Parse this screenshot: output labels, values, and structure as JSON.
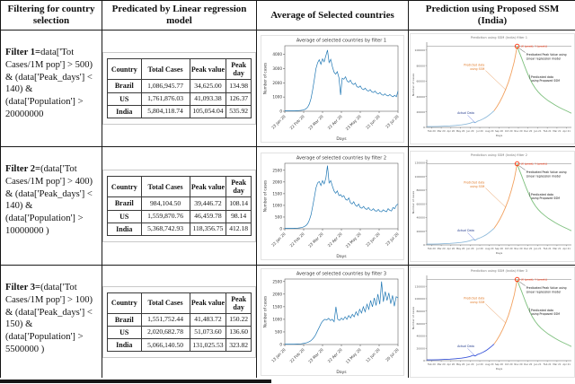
{
  "header": {
    "columns": [
      "Filtering for country selection",
      "Predicated by Linear regression model",
      "Average of Selected countries",
      "Prediction using Proposed SSM (India)"
    ]
  },
  "rows": [
    {
      "filter_bold": "Filter 1=",
      "filter_rest": "data['Tot Cases/1M pop'] > 500) & (data['Peak_days'] < 140) & (data['Population'] > 20000000",
      "table": {
        "headers": [
          "Country",
          "Total Cases",
          "Peak value",
          "Peak day"
        ],
        "rows": [
          [
            "Brazil",
            "1,086,945.77",
            "34,625.00",
            "134.98"
          ],
          [
            "US",
            "1,761,876.03",
            "41,093.38",
            "126.37"
          ],
          [
            "India",
            "5,804,118.74",
            "105,054.04",
            "535.92"
          ]
        ]
      }
    },
    {
      "filter_bold": "Filter 2=",
      "filter_rest": "(data['Tot Cases/1M pop'] > 400) & (data['Peak_days'] < 140) & (data['Population'] > 10000000 )",
      "table": {
        "headers": [
          "Country",
          "Total Cases",
          "Peak value",
          "Peak day"
        ],
        "rows": [
          [
            "Brazil",
            "984,104.50",
            "39,446.72",
            "108.14"
          ],
          [
            "US",
            "1,559,870.76",
            "46,459.78",
            "98.14"
          ],
          [
            "India",
            "5,368,742.93",
            "118,356.75",
            "412.18"
          ]
        ]
      }
    },
    {
      "filter_bold": "Filter 3=",
      "filter_rest": "(data['Tot Cases/1M pop'] > 100) & (data['Peak_days'] < 150) & (data['Population'] > 5500000 )",
      "table": {
        "headers": [
          "Country",
          "Total Cases",
          "Peak value",
          "Peak day"
        ],
        "rows": [
          [
            "Brazil",
            "1,551,752.44",
            "41,483.72",
            "150.22"
          ],
          [
            "US",
            "2,020,682.78",
            "51,073.60",
            "136.60"
          ],
          [
            "India",
            "5,066,140.50",
            "131,025.53",
            "323.82"
          ]
        ]
      }
    }
  ],
  "colors": {
    "avg_line": "#1f77b4",
    "actual_segment": [
      "#8fbbdb",
      "#8fbbdb",
      "#3a55d9"
    ],
    "ssm_segment": "#f2a15f",
    "proposed_segment": "#7cbf7c",
    "peak_marker": "#ff2a00",
    "peak_line": "#9a9a9a",
    "axis": "#444444"
  },
  "pred_common": {
    "red_label": "(X (peak), Y (peak))",
    "lin_label_1": "Predicated Peak Value using",
    "lin_label_2": "Linear regression model",
    "fit_label_1": "Predicted data",
    "fit_label_2": "using SSM",
    "actual_label": "Actual Data",
    "prop_label_1": "Predicated data",
    "prop_label_2": "using Proposed SSM",
    "ylabel": "Number of cases",
    "xlabel": "Days"
  },
  "pred_shape": {
    "actual": [
      [
        0,
        0.01
      ],
      [
        0.04,
        0.01
      ],
      [
        0.08,
        0.012
      ],
      [
        0.12,
        0.015
      ],
      [
        0.16,
        0.019
      ],
      [
        0.2,
        0.024
      ],
      [
        0.24,
        0.031
      ],
      [
        0.27,
        0.04
      ],
      [
        0.3,
        0.052
      ],
      [
        0.32,
        0.066
      ],
      [
        0.335,
        0.058
      ],
      [
        0.35,
        0.075
      ],
      [
        0.37,
        0.088
      ],
      [
        0.39,
        0.105
      ],
      [
        0.41,
        0.125
      ],
      [
        0.43,
        0.15
      ],
      [
        0.45,
        0.18
      ],
      [
        0.465,
        0.205
      ]
    ],
    "ssm": [
      [
        0.465,
        0.205
      ],
      [
        0.485,
        0.255
      ],
      [
        0.505,
        0.315
      ],
      [
        0.525,
        0.385
      ],
      [
        0.545,
        0.465
      ],
      [
        0.565,
        0.56
      ],
      [
        0.585,
        0.675
      ],
      [
        0.605,
        0.81
      ],
      [
        0.617,
        0.92
      ],
      [
        0.625,
        1.0
      ]
    ],
    "proposed": [
      [
        0.625,
        1.0
      ],
      [
        0.64,
        0.925
      ],
      [
        0.655,
        0.855
      ],
      [
        0.67,
        0.785
      ],
      [
        0.685,
        0.715
      ],
      [
        0.7,
        0.65
      ],
      [
        0.715,
        0.592
      ],
      [
        0.73,
        0.54
      ],
      [
        0.75,
        0.482
      ],
      [
        0.77,
        0.438
      ],
      [
        0.79,
        0.4
      ],
      [
        0.815,
        0.362
      ],
      [
        0.84,
        0.328
      ],
      [
        0.865,
        0.3
      ],
      [
        0.89,
        0.272
      ],
      [
        0.915,
        0.248
      ],
      [
        0.94,
        0.226
      ],
      [
        0.97,
        0.2
      ],
      [
        1.0,
        0.175
      ]
    ]
  },
  "chart_data": [
    {
      "id": "avg1",
      "type": "line",
      "title": "Average of selected countries by filter 1",
      "xlabel": "Days",
      "ylabel": "Number of cases",
      "ylim": [
        0,
        4600
      ],
      "yticks": [
        0,
        1000,
        2000,
        3000,
        4000
      ],
      "xticklabels": [
        "23 Jan 20",
        "22 Feb 20",
        "23 Mar 20",
        "22 Apr 20",
        "23 May 20",
        "22 Jun 20",
        "23 Jul 20"
      ],
      "values": [
        30,
        30,
        30,
        30,
        30,
        30,
        32,
        35,
        40,
        48,
        60,
        80,
        115,
        180,
        300,
        520,
        900,
        1500,
        2250,
        3000,
        3400,
        3620,
        3300,
        3680,
        3480,
        3900,
        4300,
        3420,
        3650,
        3120,
        2750,
        2600,
        2780,
        2350,
        1150,
        2320,
        2250,
        2420,
        2120,
        2050,
        2180,
        1950,
        1880,
        1980,
        1720,
        1680,
        1780,
        1580,
        1520,
        1620,
        1470,
        1420,
        1520,
        1370,
        1320,
        1420,
        1270,
        1220,
        1320,
        1170,
        1120,
        1220,
        1120,
        1070,
        1170,
        1070,
        1020,
        1120,
        1020,
        1420
      ]
    },
    {
      "id": "pred1",
      "type": "line-prediction",
      "title": "Prediction using SSM (India) filter 1",
      "peak_value": 105054,
      "yticks": [
        0,
        20000,
        40000,
        60000,
        80000,
        100000
      ],
      "xticklabels": [
        "Feb 20",
        "Mar 20",
        "Apr 20",
        "May 20",
        "Jun 20",
        "Jul 20",
        "Aug 20",
        "Sep 20",
        "Oct 20",
        "Nov 20",
        "Dec 20",
        "Jan 21",
        "Feb 21",
        "Mar 21",
        "Apr 21"
      ]
    },
    {
      "id": "avg2",
      "type": "line",
      "title": "Average of selected countries by filter 2",
      "xlabel": "Days",
      "ylabel": "Number of cases",
      "ylim": [
        0,
        2800
      ],
      "yticks": [
        0,
        500,
        1000,
        1500,
        2000,
        2500
      ],
      "xticklabels": [
        "22 Jan 20",
        "22 Feb 20",
        "23 Mar 20",
        "22 Apr 20",
        "23 May 20",
        "22 Jun 20",
        "23 Jul 20"
      ],
      "values": [
        20,
        20,
        20,
        20,
        20,
        20,
        22,
        25,
        30,
        38,
        50,
        68,
        95,
        145,
        230,
        380,
        600,
        950,
        1350,
        1750,
        1960,
        2020,
        1850,
        2060,
        1920,
        2160,
        2700,
        1960,
        2060,
        1820,
        1620,
        1520,
        1620,
        1420,
        1460,
        1360,
        1420,
        1260,
        1220,
        1320,
        1120,
        1060,
        1160,
        1010,
        960,
        1060,
        910,
        880,
        960,
        860,
        830,
        910,
        810,
        790,
        860,
        770,
        750,
        830,
        740,
        730,
        810,
        760,
        730,
        860,
        790,
        760,
        910,
        860,
        1010,
        1060
      ]
    },
    {
      "id": "pred2",
      "type": "line-prediction",
      "title": "Prediction using SSM (India) filter 2",
      "peak_value": 118357,
      "yticks": [
        0,
        20000,
        40000,
        60000,
        80000,
        100000,
        120000
      ],
      "xticklabels": [
        "Feb 20",
        "Mar 20",
        "Apr 20",
        "May 20",
        "Jun 20",
        "Jul 20",
        "Aug 20",
        "Sep 20",
        "Oct 20",
        "Nov 20",
        "Dec 20",
        "Jan 21",
        "Feb 21",
        "Mar 21",
        "Apr 21"
      ]
    },
    {
      "id": "avg3",
      "type": "line",
      "title": "Average of selected countries by filter 3",
      "xlabel": "Days",
      "ylabel": "Number of cases",
      "ylim": [
        0,
        2600
      ],
      "yticks": [
        0,
        500,
        1000,
        1500,
        2000,
        2500
      ],
      "xticklabels": [
        "13 Jan 20",
        "22 Feb 20",
        "23 Mar 20",
        "22 Apr 20",
        "13 May 20",
        "12 Jun 20",
        "20 Jul 20"
      ],
      "values": [
        15,
        15,
        15,
        15,
        15,
        15,
        17,
        20,
        24,
        30,
        40,
        54,
        74,
        100,
        140,
        200,
        285,
        400,
        560,
        700,
        850,
        950,
        1000,
        975,
        1040,
        950,
        1000,
        905,
        1500,
        1005,
        955,
        1050,
        980,
        1100,
        1000,
        1150,
        1050,
        1200,
        1100,
        1300,
        1150,
        1400,
        1250,
        1500,
        1300,
        1600,
        1400,
        1750,
        1500,
        1850,
        1550,
        2000,
        1600,
        2500,
        1700,
        2100,
        1750,
        2050,
        1620,
        1950,
        1520,
        1900,
        1850
      ]
    },
    {
      "id": "pred3",
      "type": "line-prediction",
      "title": "Prediction using SSM (India) filter 3",
      "peak_value": 131026,
      "yticks": [
        0,
        20000,
        40000,
        60000,
        80000,
        100000,
        120000
      ],
      "xticklabels": [
        "Feb 20",
        "Mar 20",
        "Apr 20",
        "May 20",
        "Jun 20",
        "Jul 20",
        "Aug 20",
        "Sep 20",
        "Oct 20",
        "Nov 20",
        "Dec 20",
        "Jan 21",
        "Feb 21",
        "Mar 21",
        "Apr 21"
      ]
    }
  ]
}
